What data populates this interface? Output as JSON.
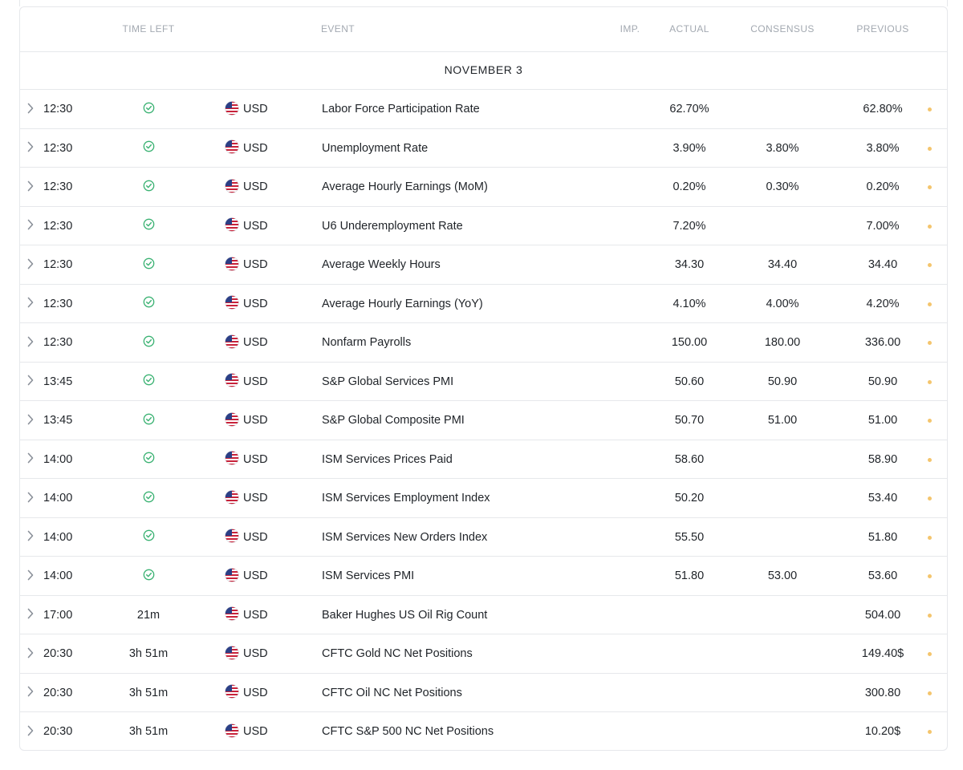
{
  "header": {
    "time_left": "TIME LEFT",
    "event": "EVENT",
    "imp": "IMP.",
    "actual": "ACTUAL",
    "consensus": "CONSENSUS",
    "previous": "PREVIOUS"
  },
  "date_label": "NOVEMBER 3",
  "colors": {
    "status_check": "#3bb273",
    "importance_dot": "#f4c56d",
    "border": "#e6e8eb"
  },
  "rows": [
    {
      "time": "12:30",
      "status": "check-icon",
      "currency": "USD",
      "event": "Labor Force Participation Rate",
      "actual": "62.70%",
      "consensus": "",
      "previous": "62.80%"
    },
    {
      "time": "12:30",
      "status": "check-icon",
      "currency": "USD",
      "event": "Unemployment Rate",
      "actual": "3.90%",
      "consensus": "3.80%",
      "previous": "3.80%"
    },
    {
      "time": "12:30",
      "status": "check-icon",
      "currency": "USD",
      "event": "Average Hourly Earnings (MoM)",
      "actual": "0.20%",
      "consensus": "0.30%",
      "previous": "0.20%"
    },
    {
      "time": "12:30",
      "status": "check-icon",
      "currency": "USD",
      "event": "U6 Underemployment Rate",
      "actual": "7.20%",
      "consensus": "",
      "previous": "7.00%"
    },
    {
      "time": "12:30",
      "status": "check-icon",
      "currency": "USD",
      "event": "Average Weekly Hours",
      "actual": "34.30",
      "consensus": "34.40",
      "previous": "34.40"
    },
    {
      "time": "12:30",
      "status": "check-icon",
      "currency": "USD",
      "event": "Average Hourly Earnings (YoY)",
      "actual": "4.10%",
      "consensus": "4.00%",
      "previous": "4.20%"
    },
    {
      "time": "12:30",
      "status": "check-icon",
      "currency": "USD",
      "event": "Nonfarm Payrolls",
      "actual": "150.00",
      "consensus": "180.00",
      "previous": "336.00"
    },
    {
      "time": "13:45",
      "status": "check-icon",
      "currency": "USD",
      "event": "S&P Global Services PMI",
      "actual": "50.60",
      "consensus": "50.90",
      "previous": "50.90"
    },
    {
      "time": "13:45",
      "status": "check-icon",
      "currency": "USD",
      "event": "S&P Global Composite PMI",
      "actual": "50.70",
      "consensus": "51.00",
      "previous": "51.00"
    },
    {
      "time": "14:00",
      "status": "check-icon",
      "currency": "USD",
      "event": "ISM Services Prices Paid",
      "actual": "58.60",
      "consensus": "",
      "previous": "58.90"
    },
    {
      "time": "14:00",
      "status": "check-icon",
      "currency": "USD",
      "event": "ISM Services Employment Index",
      "actual": "50.20",
      "consensus": "",
      "previous": "53.40"
    },
    {
      "time": "14:00",
      "status": "check-icon",
      "currency": "USD",
      "event": "ISM Services New Orders Index",
      "actual": "55.50",
      "consensus": "",
      "previous": "51.80"
    },
    {
      "time": "14:00",
      "status": "check-icon",
      "currency": "USD",
      "event": "ISM Services PMI",
      "actual": "51.80",
      "consensus": "53.00",
      "previous": "53.60"
    },
    {
      "time": "17:00",
      "status": "21m",
      "currency": "USD",
      "event": "Baker Hughes US Oil Rig Count",
      "actual": "",
      "consensus": "",
      "previous": "504.00"
    },
    {
      "time": "20:30",
      "status": "3h 51m",
      "currency": "USD",
      "event": "CFTC Gold NC Net Positions",
      "actual": "",
      "consensus": "",
      "previous": "149.40$"
    },
    {
      "time": "20:30",
      "status": "3h 51m",
      "currency": "USD",
      "event": "CFTC Oil NC Net Positions",
      "actual": "",
      "consensus": "",
      "previous": "300.80"
    },
    {
      "time": "20:30",
      "status": "3h 51m",
      "currency": "USD",
      "event": "CFTC S&P 500 NC Net Positions",
      "actual": "",
      "consensus": "",
      "previous": "10.20$"
    }
  ]
}
